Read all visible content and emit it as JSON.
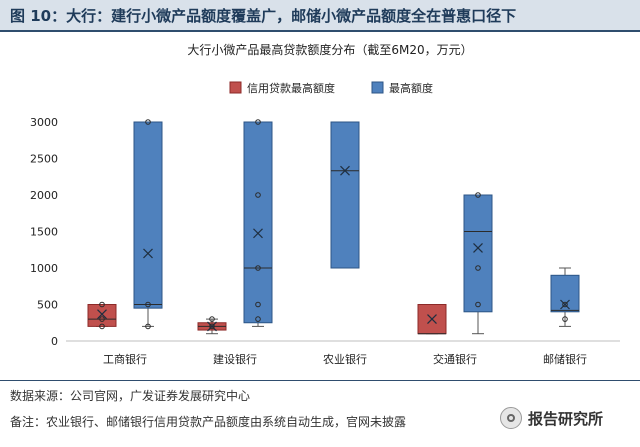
{
  "figure": {
    "title": "图 10：大行：建行小微产品额度覆盖广，邮储小微产品额度全在普惠口径下",
    "source": "数据来源：公司官网，广发证券发展研究中心",
    "note": "备注：农业银行、邮储银行信用贷款产品额度由系统自动生成，官网未披露",
    "watermark": "报告研究所"
  },
  "colors": {
    "credit": "#c0504d",
    "credit_stroke": "#8c2a28",
    "max": "#4f81bd",
    "max_stroke": "#2c5586",
    "title_band": "#d9e1ea",
    "title_text": "#1f3b5a"
  },
  "chart_data": {
    "type": "box",
    "title": "大行小微产品最高贷款额度分布（截至6M20，万元）",
    "legend_position": "top-center",
    "grid": false,
    "categories": [
      "工商银行",
      "建设银行",
      "农业银行",
      "交通银行",
      "邮储银行"
    ],
    "ylim": [
      0,
      3000
    ],
    "yticks": [
      0,
      500,
      1000,
      1500,
      2000,
      2500,
      3000
    ],
    "series": [
      {
        "name": "信用贷款最高额度",
        "color": "#c0504d",
        "boxes": [
          {
            "category": "工商银行",
            "min": 200,
            "q1": 200,
            "median": 300,
            "q3": 500,
            "max": 500,
            "mean": 367,
            "points": [
              200,
              300,
              500
            ]
          },
          {
            "category": "建设银行",
            "min": 100,
            "q1": 150,
            "median": 200,
            "q3": 250,
            "max": 300,
            "mean": 200,
            "points": [
              200,
              300
            ]
          },
          null,
          {
            "category": "交通银行",
            "min": 100,
            "q1": 100,
            "median": 100,
            "q3": 500,
            "max": 500,
            "mean": 300,
            "points": []
          },
          null
        ]
      },
      {
        "name": "最高额度",
        "color": "#4f81bd",
        "boxes": [
          {
            "category": "工商银行",
            "min": 200,
            "q1": 450,
            "median": 500,
            "q3": 3000,
            "max": 3000,
            "mean": 1200,
            "points": [
              200,
              500,
              3000
            ]
          },
          {
            "category": "建设银行",
            "min": 200,
            "q1": 250,
            "median": 1000,
            "q3": 3000,
            "max": 3000,
            "mean": 1475,
            "points": [
              300,
              500,
              1000,
              2000,
              3000
            ]
          },
          {
            "category": "农业银行",
            "min": 1000,
            "q1": 1000,
            "median": 2333,
            "q3": 3000,
            "max": 3000,
            "mean": 2333,
            "points": []
          },
          {
            "category": "交通银行",
            "min": 100,
            "q1": 400,
            "median": 1500,
            "q3": 2000,
            "max": 2000,
            "mean": 1275,
            "points": [
              500,
              1000,
              2000
            ]
          },
          {
            "category": "邮储银行",
            "min": 200,
            "q1": 400,
            "median": 420,
            "q3": 900,
            "max": 1000,
            "mean": 500,
            "points": [
              300,
              500
            ]
          }
        ]
      }
    ]
  }
}
